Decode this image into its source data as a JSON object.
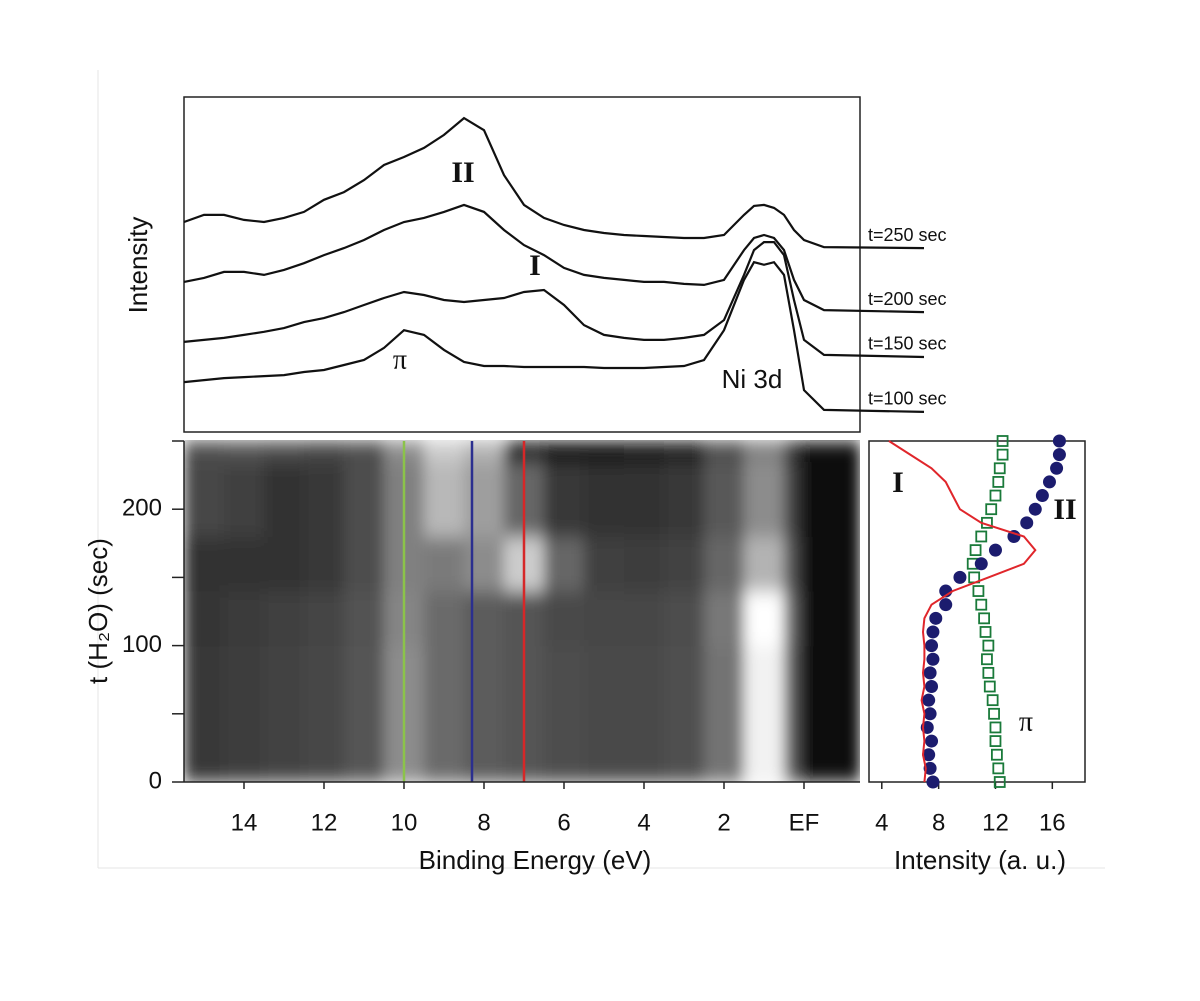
{
  "chart_data": [
    {
      "type": "line",
      "ylabel": "Intensity",
      "xlim": [
        15.5,
        -1.4
      ],
      "ylim": [
        0,
        10
      ],
      "x": [
        15.5,
        15,
        14.5,
        14,
        13.5,
        13,
        12.5,
        12,
        11.5,
        11,
        10.5,
        10,
        9.5,
        9,
        8.5,
        8,
        7.5,
        7,
        6.5,
        6,
        5.5,
        5,
        4.5,
        4,
        3.5,
        3,
        2.5,
        2,
        1.5,
        1.25,
        1,
        0.75,
        0.5,
        0.25,
        0,
        -0.5,
        -3
      ],
      "series": [
        {
          "name": "t=250 sec",
          "color": "#111111",
          "values": [
            6.27,
            6.48,
            6.48,
            6.33,
            6.27,
            6.39,
            6.57,
            6.93,
            7.16,
            7.52,
            7.97,
            8.21,
            8.48,
            8.87,
            9.37,
            9.01,
            7.67,
            6.78,
            6.39,
            6.18,
            6.03,
            5.94,
            5.88,
            5.85,
            5.82,
            5.79,
            5.79,
            5.88,
            6.48,
            6.75,
            6.78,
            6.69,
            6.48,
            6.03,
            5.73,
            5.52,
            5.49
          ]
        },
        {
          "name": "t=200 sec",
          "color": "#111111",
          "values": [
            4.48,
            4.6,
            4.78,
            4.78,
            4.69,
            4.84,
            5.04,
            5.28,
            5.49,
            5.73,
            6.03,
            6.27,
            6.39,
            6.57,
            6.78,
            6.57,
            6.03,
            5.58,
            5.28,
            4.9,
            4.69,
            4.6,
            4.54,
            4.48,
            4.48,
            4.42,
            4.39,
            4.54,
            5.43,
            5.79,
            5.88,
            5.79,
            5.43,
            4.54,
            3.94,
            3.64,
            3.58
          ]
        },
        {
          "name": "t=150 sec",
          "color": "#111111",
          "values": [
            2.69,
            2.75,
            2.81,
            2.9,
            2.99,
            3.1,
            3.28,
            3.4,
            3.58,
            3.79,
            4.0,
            4.18,
            4.09,
            3.94,
            3.88,
            3.94,
            4.0,
            4.18,
            4.24,
            3.79,
            3.19,
            2.9,
            2.81,
            2.75,
            2.75,
            2.81,
            2.9,
            3.34,
            4.69,
            5.43,
            5.67,
            5.67,
            5.28,
            3.94,
            2.75,
            2.3,
            2.24
          ]
        },
        {
          "name": "t=100 sec",
          "color": "#111111",
          "values": [
            1.49,
            1.55,
            1.61,
            1.64,
            1.67,
            1.7,
            1.79,
            1.85,
            2.0,
            2.15,
            2.51,
            3.04,
            2.9,
            2.45,
            2.09,
            1.97,
            1.97,
            1.94,
            1.94,
            1.94,
            1.94,
            1.91,
            1.91,
            1.91,
            1.94,
            1.97,
            2.15,
            3.04,
            4.54,
            5.07,
            4.99,
            5.07,
            4.69,
            3.04,
            1.25,
            0.66,
            0.6
          ]
        }
      ],
      "annotations": [
        {
          "text": "II"
        },
        {
          "text": "I"
        },
        {
          "text": "π"
        },
        {
          "text": "Ni 3d"
        }
      ]
    },
    {
      "type": "heatmap",
      "xlabel": "Binding Energy (eV)",
      "ylabel": "t (H₂O) (sec)",
      "xlim": [
        15.5,
        -1.4
      ],
      "ylim": [
        0,
        250
      ],
      "xticks": [
        14,
        12,
        10,
        8,
        6,
        4,
        2,
        {
          "value": 0,
          "label": "EF"
        }
      ],
      "yticks": [
        0,
        100,
        200
      ],
      "yminor_ticks": [
        50,
        150,
        250
      ],
      "x_edges": [
        15.5,
        14.5,
        13.5,
        12.5,
        11.5,
        10.5,
        9.5,
        8.5,
        7.5,
        6.5,
        5.5,
        4.5,
        3.5,
        2.5,
        1.5,
        0.5,
        0.1,
        -1.4
      ],
      "y_edges": [
        0,
        50,
        100,
        140,
        180,
        235,
        250
      ],
      "zlim": [
        0,
        1
      ],
      "colormap": "gray",
      "z": [
        [
          0.22,
          0.24,
          0.26,
          0.28,
          0.33,
          0.55,
          0.42,
          0.36,
          0.33,
          0.3,
          0.29,
          0.29,
          0.31,
          0.45,
          0.95,
          0.35,
          0.03
        ],
        [
          0.22,
          0.24,
          0.26,
          0.28,
          0.33,
          0.55,
          0.42,
          0.36,
          0.33,
          0.3,
          0.29,
          0.29,
          0.31,
          0.45,
          0.95,
          0.35,
          0.03
        ],
        [
          0.21,
          0.23,
          0.25,
          0.27,
          0.32,
          0.52,
          0.42,
          0.36,
          0.33,
          0.29,
          0.28,
          0.28,
          0.3,
          0.47,
          1.0,
          0.38,
          0.03
        ],
        [
          0.2,
          0.2,
          0.2,
          0.22,
          0.3,
          0.5,
          0.48,
          0.55,
          0.8,
          0.4,
          0.25,
          0.24,
          0.26,
          0.4,
          0.7,
          0.3,
          0.03
        ],
        [
          0.28,
          0.25,
          0.2,
          0.22,
          0.3,
          0.5,
          0.72,
          0.62,
          0.4,
          0.22,
          0.2,
          0.2,
          0.22,
          0.35,
          0.55,
          0.25,
          0.03
        ],
        [
          0.3,
          0.32,
          0.3,
          0.28,
          0.3,
          0.55,
          0.8,
          0.7,
          0.1,
          0.06,
          0.06,
          0.07,
          0.1,
          0.3,
          0.5,
          0.2,
          0.03
        ]
      ],
      "lines": [
        {
          "x": 10,
          "color": "#8bc34a"
        },
        {
          "x": 8.3,
          "color": "#2b2f8f"
        },
        {
          "x": 7,
          "color": "#d62728"
        }
      ]
    },
    {
      "type": "profile",
      "xlabel": "Intensity (a. u.)",
      "xlim": [
        3.1,
        18.3
      ],
      "ylim": [
        0,
        250
      ],
      "xticks": [
        4,
        8,
        12,
        16
      ],
      "t": [
        0,
        10,
        20,
        30,
        40,
        50,
        60,
        70,
        80,
        90,
        100,
        110,
        120,
        130,
        140,
        150,
        160,
        170,
        180,
        190,
        200,
        210,
        220,
        230,
        240,
        250
      ],
      "series": [
        {
          "name": "I",
          "color": "#e0262b",
          "marker": "line",
          "values": [
            7,
            7.1,
            6.9,
            7,
            6.9,
            7,
            6.8,
            7,
            6.9,
            7,
            7,
            6.9,
            7,
            7.5,
            9,
            11.5,
            14,
            14.8,
            14,
            11,
            9.5,
            9,
            8.5,
            7.5,
            6,
            4.5
          ]
        },
        {
          "name": "II",
          "color": "#1c1c6e",
          "marker": "circle",
          "values": [
            7.6,
            7.4,
            7.3,
            7.5,
            7.2,
            7.4,
            7.3,
            7.5,
            7.4,
            7.6,
            7.5,
            7.6,
            7.8,
            8.5,
            8.5,
            9.5,
            11,
            12,
            13.3,
            14.2,
            14.8,
            15.3,
            15.8,
            16.3,
            16.5,
            16.5
          ]
        },
        {
          "name": "π",
          "color": "#1a7a3a",
          "marker": "square",
          "values": [
            12.3,
            12.2,
            12.1,
            12,
            12,
            11.9,
            11.8,
            11.6,
            11.5,
            11.4,
            11.5,
            11.3,
            11.2,
            11,
            10.8,
            10.5,
            10.4,
            10.6,
            11,
            11.4,
            11.7,
            12,
            12.2,
            12.3,
            12.5,
            12.5
          ]
        }
      ]
    }
  ]
}
